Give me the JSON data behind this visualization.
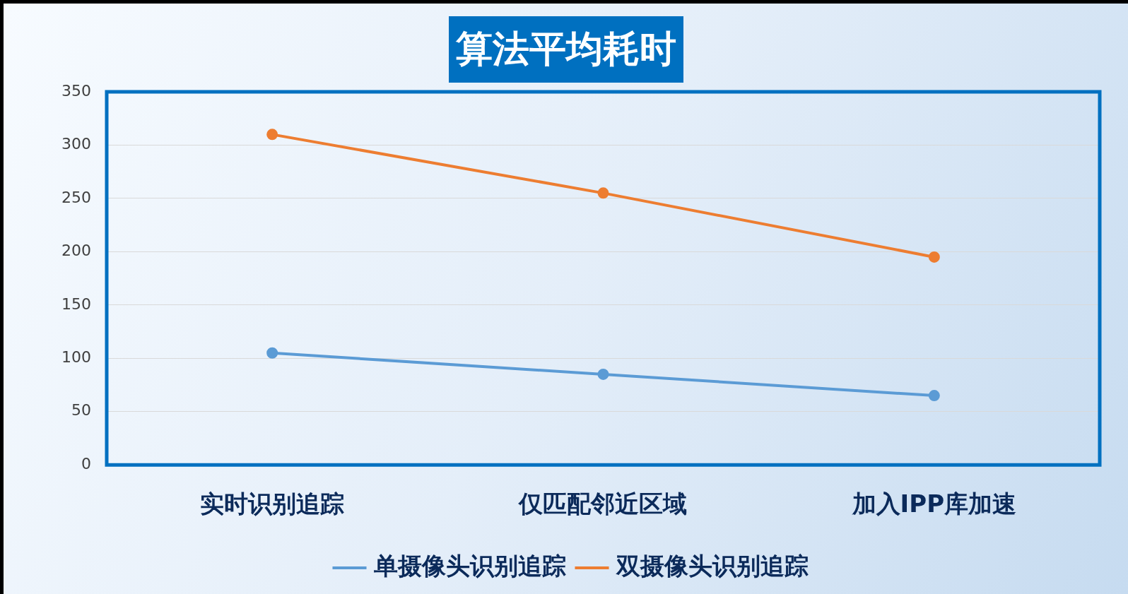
{
  "chart_data": {
    "type": "line",
    "title": "算法平均耗时",
    "categories": [
      "实时识别追踪",
      "仅匹配邻近区域",
      "加入IPP库加速"
    ],
    "series": [
      {
        "name": "单摄像头识别追踪",
        "color": "#5b9bd5",
        "values": [
          105,
          85,
          65
        ]
      },
      {
        "name": "双摄像头识别追踪",
        "color": "#ed7d31",
        "values": [
          310,
          255,
          195
        ]
      }
    ],
    "ylim": [
      0,
      350
    ],
    "yticks": [
      0,
      50,
      100,
      150,
      200,
      250,
      300,
      350
    ],
    "grid": "y",
    "legend": "bottom",
    "marker": "circle",
    "line_style": "solid"
  }
}
